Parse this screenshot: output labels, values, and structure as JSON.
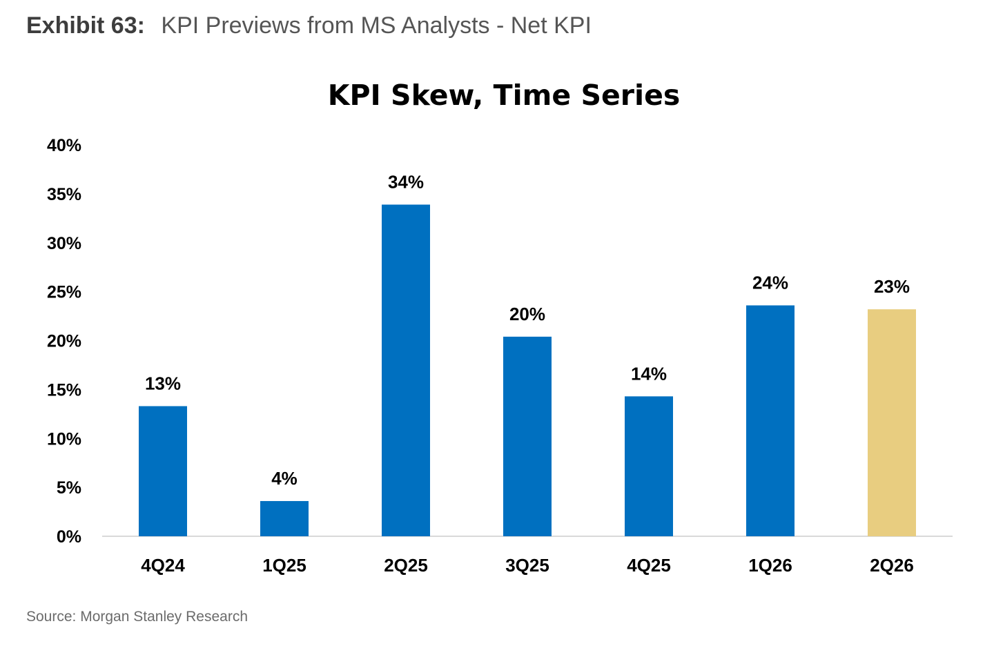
{
  "exhibit": {
    "label": "Exhibit 63:",
    "title": "KPI Previews from MS Analysts - Net KPI"
  },
  "source": "Source: Morgan Stanley Research",
  "colors": {
    "primary_bar": "#0070c0",
    "highlight_bar": "#e8cd80",
    "axis_line": "#d9d9d9",
    "text": "#000000"
  },
  "chart_data": {
    "type": "bar",
    "title": "KPI  Skew, Time Series",
    "xlabel": "",
    "ylabel": "",
    "categories": [
      "4Q24",
      "1Q25",
      "2Q25",
      "3Q25",
      "4Q25",
      "1Q26",
      "2Q26"
    ],
    "values": [
      13.3,
      3.6,
      33.9,
      20.4,
      14.3,
      23.6,
      23.2
    ],
    "data_labels": [
      "13%",
      "4%",
      "34%",
      "20%",
      "14%",
      "24%",
      "23%"
    ],
    "highlight_index": 6,
    "ylim": [
      0,
      40
    ],
    "y_ticks": [
      0,
      5,
      10,
      15,
      20,
      25,
      30,
      35,
      40
    ],
    "y_tick_labels": [
      "0%",
      "5%",
      "10%",
      "15%",
      "20%",
      "25%",
      "30%",
      "35%",
      "40%"
    ],
    "grid": false,
    "legend": "none"
  }
}
